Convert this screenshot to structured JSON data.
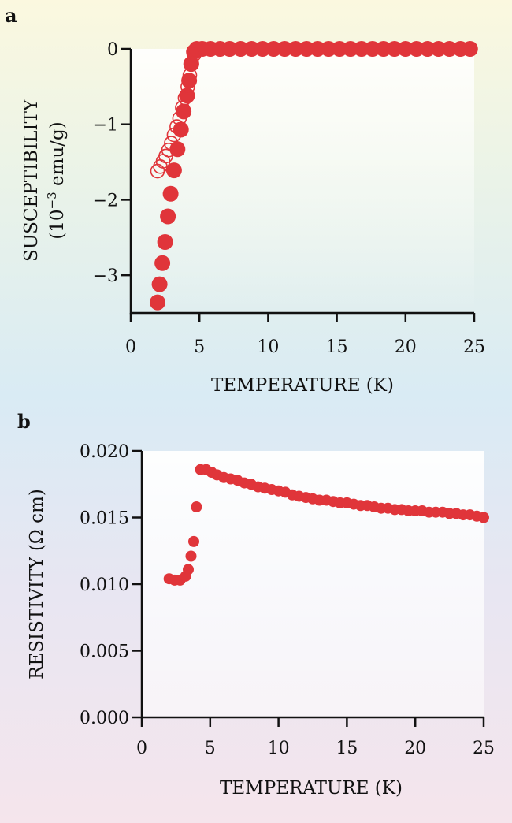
{
  "chart_data": [
    {
      "panel_label": "a",
      "type": "scatter",
      "xlabel": "TEMPERATURE (K)",
      "ylabel": "SUSCEPTIBILITY",
      "ylabel_units_prefix": "(10",
      "ylabel_units_exponent": "−3",
      "ylabel_units_suffix": " emu/g)",
      "xlim": [
        0,
        25
      ],
      "ylim": [
        -3.5,
        0
      ],
      "xticks": [
        0,
        5,
        10,
        15,
        20,
        25
      ],
      "xtick_labels": [
        "0",
        "5",
        "10",
        "15",
        "20",
        "25"
      ],
      "yticks": [
        0,
        -1,
        -2,
        -3
      ],
      "ytick_labels": [
        "0",
        "−1",
        "−2",
        "−3"
      ],
      "series": [
        {
          "name": "filled",
          "marker": "filled-circle",
          "color": "#e0353a",
          "points": [
            [
              1.95,
              -3.36
            ],
            [
              2.1,
              -3.12
            ],
            [
              2.3,
              -2.84
            ],
            [
              2.5,
              -2.56
            ],
            [
              2.7,
              -2.22
            ],
            [
              2.9,
              -1.92
            ],
            [
              3.15,
              -1.61
            ],
            [
              3.4,
              -1.33
            ],
            [
              3.65,
              -1.07
            ],
            [
              3.85,
              -0.83
            ],
            [
              4.1,
              -0.62
            ],
            [
              4.25,
              -0.42
            ],
            [
              4.4,
              -0.2
            ],
            [
              4.6,
              -0.04
            ],
            [
              4.8,
              0.0
            ],
            [
              5.2,
              0.0
            ],
            [
              5.8,
              0.0
            ],
            [
              6.5,
              0.0
            ],
            [
              7.2,
              0.0
            ],
            [
              8.0,
              0.0
            ],
            [
              8.8,
              0.0
            ],
            [
              9.6,
              0.0
            ],
            [
              10.4,
              0.0
            ],
            [
              11.2,
              0.0
            ],
            [
              12.0,
              0.0
            ],
            [
              12.8,
              0.0
            ],
            [
              13.6,
              0.0
            ],
            [
              14.4,
              0.0
            ],
            [
              15.2,
              0.0
            ],
            [
              16.0,
              0.0
            ],
            [
              16.8,
              0.0
            ],
            [
              17.6,
              0.0
            ],
            [
              18.4,
              0.0
            ],
            [
              19.2,
              0.0
            ],
            [
              20.0,
              0.0
            ],
            [
              20.8,
              0.0
            ],
            [
              21.6,
              0.0
            ],
            [
              22.4,
              0.0
            ],
            [
              23.2,
              0.0
            ],
            [
              24.0,
              0.0
            ],
            [
              24.7,
              0.0
            ]
          ]
        },
        {
          "name": "open",
          "marker": "open-circle",
          "color": "#e0353a",
          "points": [
            [
              1.95,
              -1.62
            ],
            [
              2.15,
              -1.56
            ],
            [
              2.35,
              -1.49
            ],
            [
              2.55,
              -1.42
            ],
            [
              2.75,
              -1.34
            ],
            [
              2.95,
              -1.25
            ],
            [
              3.15,
              -1.14
            ],
            [
              3.35,
              -1.03
            ],
            [
              3.55,
              -0.92
            ],
            [
              3.75,
              -0.78
            ],
            [
              3.95,
              -0.65
            ],
            [
              4.15,
              -0.5
            ],
            [
              4.3,
              -0.35
            ],
            [
              4.45,
              -0.2
            ],
            [
              4.6,
              -0.08
            ]
          ]
        }
      ]
    },
    {
      "panel_label": "b",
      "type": "scatter",
      "xlabel": "TEMPERATURE (K)",
      "ylabel": "RESISTIVITY (Ω cm)",
      "xlim": [
        0,
        25
      ],
      "ylim": [
        0,
        0.02
      ],
      "xticks": [
        0,
        5,
        10,
        15,
        20,
        25
      ],
      "xtick_labels": [
        "0",
        "5",
        "10",
        "15",
        "20",
        "25"
      ],
      "yticks": [
        0,
        0.005,
        0.01,
        0.015,
        0.02
      ],
      "ytick_labels": [
        "0.000",
        "0.005",
        "0.010",
        "0.015",
        "0.020"
      ],
      "series": [
        {
          "name": "resistivity",
          "marker": "filled-circle",
          "color": "#e0353a",
          "points": [
            [
              2.0,
              0.0104
            ],
            [
              2.4,
              0.0103
            ],
            [
              2.8,
              0.0103
            ],
            [
              3.2,
              0.0106
            ],
            [
              3.4,
              0.0111
            ],
            [
              3.6,
              0.0121
            ],
            [
              3.8,
              0.0132
            ],
            [
              4.0,
              0.0158
            ],
            [
              4.3,
              0.0186
            ],
            [
              4.7,
              0.0186
            ],
            [
              5.1,
              0.0184
            ],
            [
              5.5,
              0.0182
            ],
            [
              6.0,
              0.018
            ],
            [
              6.5,
              0.0179
            ],
            [
              7.0,
              0.0178
            ],
            [
              7.5,
              0.0176
            ],
            [
              8.0,
              0.0175
            ],
            [
              8.5,
              0.0173
            ],
            [
              9.0,
              0.0172
            ],
            [
              9.5,
              0.0171
            ],
            [
              10.0,
              0.017
            ],
            [
              10.5,
              0.0169
            ],
            [
              11.0,
              0.0167
            ],
            [
              11.5,
              0.0166
            ],
            [
              12.0,
              0.0165
            ],
            [
              12.5,
              0.0164
            ],
            [
              13.0,
              0.0163
            ],
            [
              13.5,
              0.0163
            ],
            [
              14.0,
              0.0162
            ],
            [
              14.5,
              0.0161
            ],
            [
              15.0,
              0.0161
            ],
            [
              15.5,
              0.016
            ],
            [
              16.0,
              0.0159
            ],
            [
              16.5,
              0.0159
            ],
            [
              17.0,
              0.0158
            ],
            [
              17.5,
              0.0157
            ],
            [
              18.0,
              0.0157
            ],
            [
              18.5,
              0.0156
            ],
            [
              19.0,
              0.0156
            ],
            [
              19.5,
              0.0155
            ],
            [
              20.0,
              0.0155
            ],
            [
              20.5,
              0.0155
            ],
            [
              21.0,
              0.0154
            ],
            [
              21.5,
              0.0154
            ],
            [
              22.0,
              0.0154
            ],
            [
              22.5,
              0.0153
            ],
            [
              23.0,
              0.0153
            ],
            [
              23.5,
              0.0152
            ],
            [
              24.0,
              0.0152
            ],
            [
              24.5,
              0.0151
            ],
            [
              25.0,
              0.015
            ]
          ]
        }
      ]
    }
  ]
}
